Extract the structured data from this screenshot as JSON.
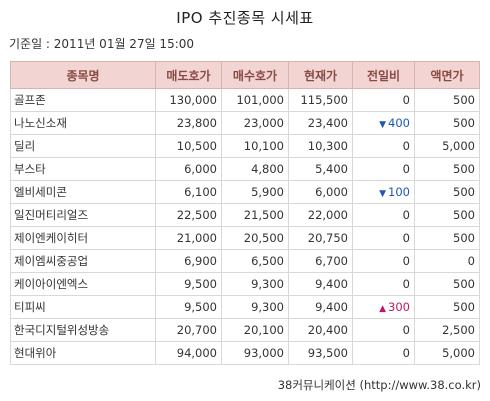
{
  "title": "IPO 추진종목 시세표",
  "date_text": "기준일 : 2011년 01월 27일 15:00",
  "columns": [
    "종목명",
    "매도호가",
    "매수호가",
    "현재가",
    "전일비",
    "액면가"
  ],
  "rows": [
    {
      "name": "골프존",
      "ask": "130,000",
      "bid": "101,000",
      "price": "115,500",
      "change": "0",
      "direction": "none",
      "par": "500"
    },
    {
      "name": "나노신소재",
      "ask": "23,800",
      "bid": "23,000",
      "price": "23,400",
      "change": "400",
      "direction": "down",
      "par": "500"
    },
    {
      "name": "딜리",
      "ask": "10,500",
      "bid": "10,100",
      "price": "10,300",
      "change": "0",
      "direction": "none",
      "par": "5,000"
    },
    {
      "name": "부스타",
      "ask": "6,000",
      "bid": "4,800",
      "price": "5,400",
      "change": "0",
      "direction": "none",
      "par": "500"
    },
    {
      "name": "엘비세미콘",
      "ask": "6,100",
      "bid": "5,900",
      "price": "6,000",
      "change": "100",
      "direction": "down",
      "par": "500"
    },
    {
      "name": "일진머티리얼즈",
      "ask": "22,500",
      "bid": "21,500",
      "price": "22,000",
      "change": "0",
      "direction": "none",
      "par": "500"
    },
    {
      "name": "제이엔케이히터",
      "ask": "21,000",
      "bid": "20,500",
      "price": "20,750",
      "change": "0",
      "direction": "none",
      "par": "500"
    },
    {
      "name": "제이엠씨중공업",
      "ask": "6,900",
      "bid": "6,500",
      "price": "6,700",
      "change": "0",
      "direction": "none",
      "par": "0"
    },
    {
      "name": "케이아이엔엑스",
      "ask": "9,500",
      "bid": "9,300",
      "price": "9,400",
      "change": "0",
      "direction": "none",
      "par": "500"
    },
    {
      "name": "티피씨",
      "ask": "9,500",
      "bid": "9,300",
      "price": "9,400",
      "change": "300",
      "direction": "up",
      "par": "500"
    },
    {
      "name": "한국디지털위성방송",
      "ask": "20,700",
      "bid": "20,100",
      "price": "20,400",
      "change": "0",
      "direction": "none",
      "par": "2,500"
    },
    {
      "name": "현대위아",
      "ask": "94,000",
      "bid": "93,000",
      "price": "93,500",
      "change": "0",
      "direction": "none",
      "par": "5,000"
    }
  ],
  "direction_icons": {
    "down": "triangle-down-icon",
    "up": "triangle-up-icon"
  },
  "colors": {
    "header_bg": "#f2d5d2",
    "header_text": "#8a4a44",
    "down": "#1d58b8",
    "up": "#c0176b"
  },
  "source": "38커뮤니케이션 (http://www.38.co.kr)"
}
